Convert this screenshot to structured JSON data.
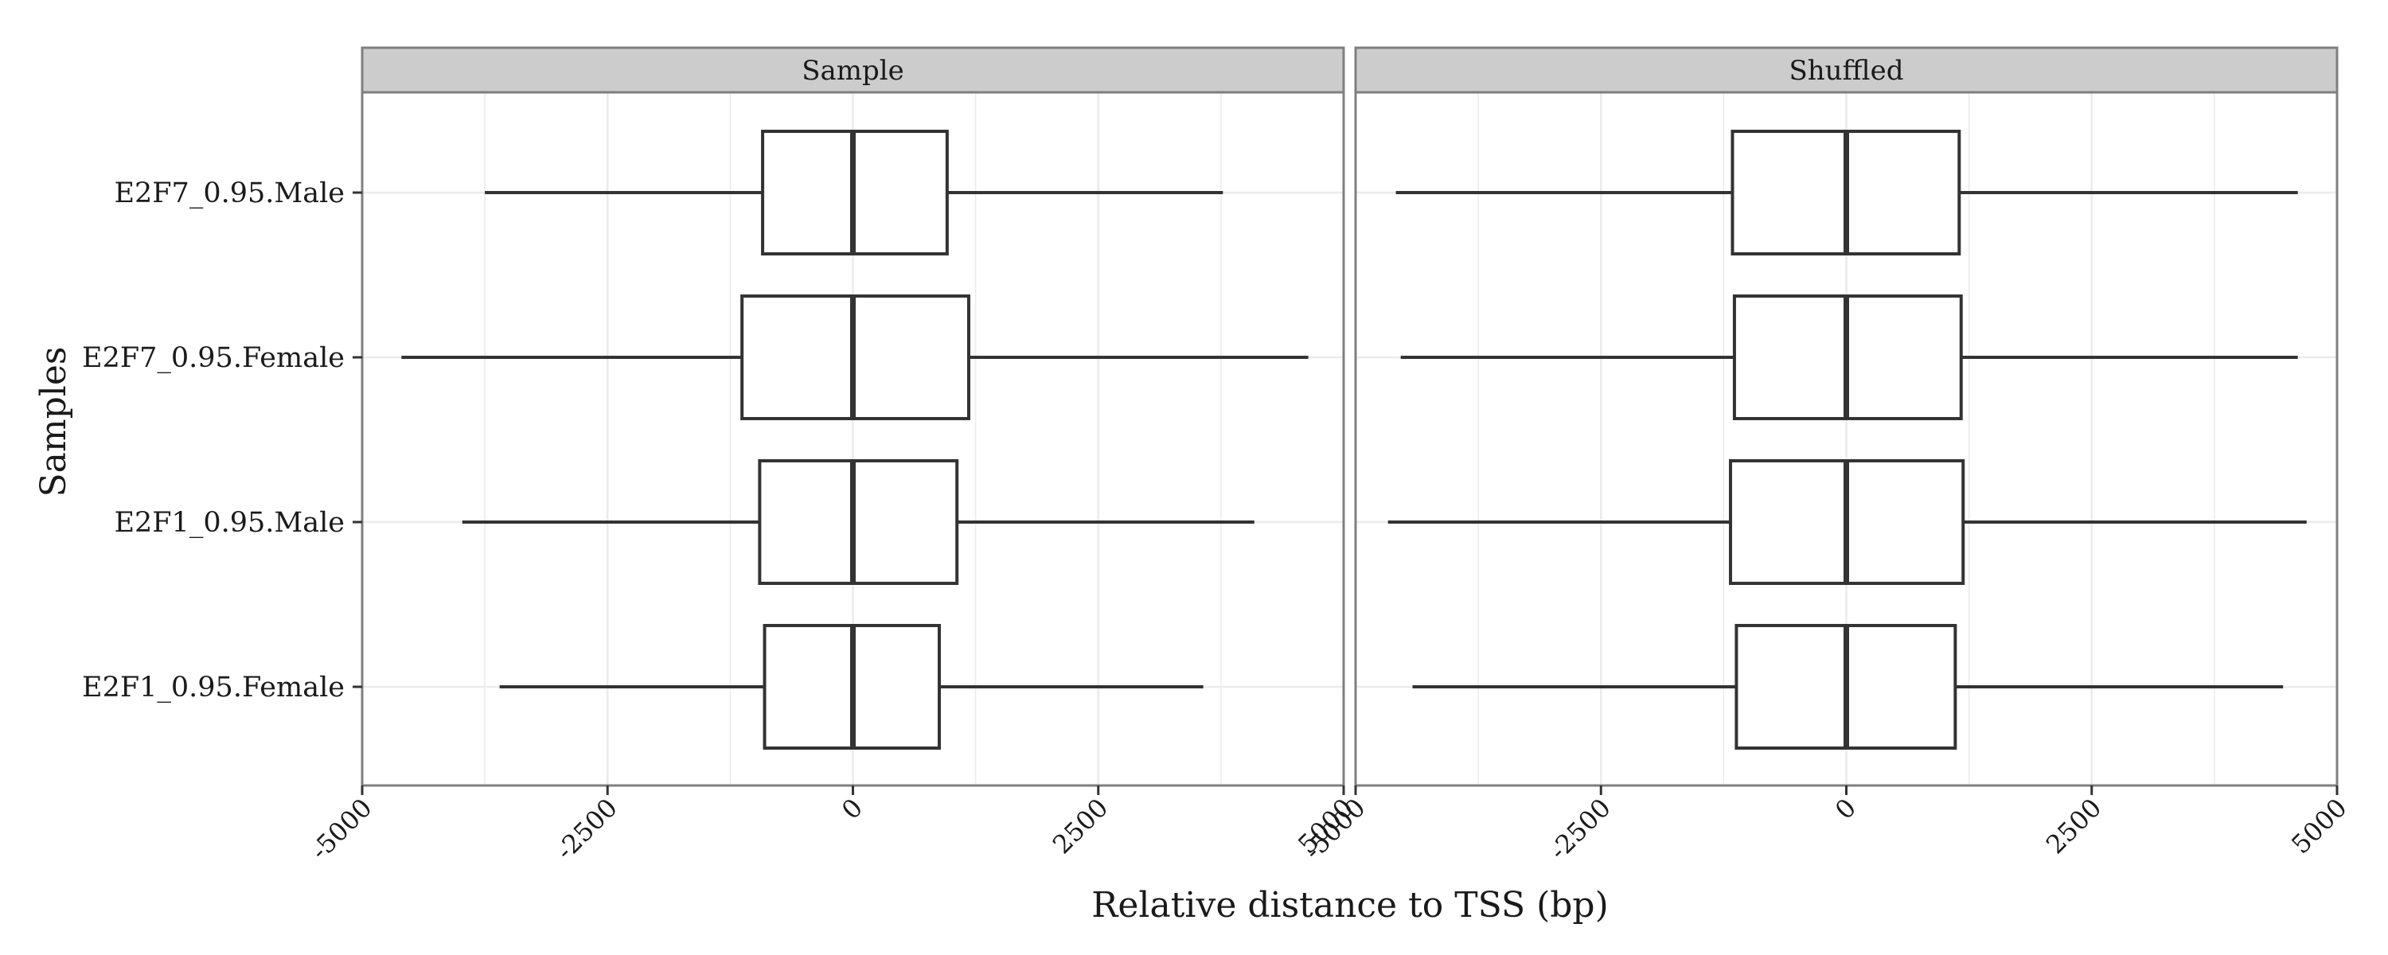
{
  "chart_data": {
    "type": "boxplot",
    "orientation": "horizontal",
    "xlabel": "Relative distance to TSS (bp)",
    "ylabel": "Samples",
    "xlim": [
      -5000,
      5000
    ],
    "x_ticks": [
      -5000,
      -2500,
      0,
      2500,
      5000
    ],
    "x_tick_labels": [
      "-5000",
      "-2500",
      "0",
      "2500",
      "5000"
    ],
    "categories": [
      "E2F7_0.95.Male",
      "E2F7_0.95.Female",
      "E2F1_0.95.Male",
      "E2F1_0.95.Female"
    ],
    "grid": true,
    "colors": {
      "box": "#333333",
      "panel_border": "#7f7f7f",
      "strip_bg": "#cccccc",
      "grid": "#ebebeb"
    },
    "panels": [
      {
        "name": "Sample",
        "boxes": [
          {
            "category": "E2F7_0.95.Male",
            "whisker_low": -3750,
            "q1": -920,
            "median": 0,
            "q3": 960,
            "whisker_high": 3770
          },
          {
            "category": "E2F7_0.95.Female",
            "whisker_low": -4600,
            "q1": -1130,
            "median": 0,
            "q3": 1180,
            "whisker_high": 4640
          },
          {
            "category": "E2F1_0.95.Male",
            "whisker_low": -3980,
            "q1": -950,
            "median": 0,
            "q3": 1060,
            "whisker_high": 4090
          },
          {
            "category": "E2F1_0.95.Female",
            "whisker_low": -3600,
            "q1": -900,
            "median": 0,
            "q3": 880,
            "whisker_high": 3570
          }
        ]
      },
      {
        "name": "Shuffled",
        "boxes": [
          {
            "category": "E2F7_0.95.Male",
            "whisker_low": -4590,
            "q1": -1160,
            "median": 0,
            "q3": 1150,
            "whisker_high": 4600
          },
          {
            "category": "E2F7_0.95.Female",
            "whisker_low": -4540,
            "q1": -1140,
            "median": 0,
            "q3": 1170,
            "whisker_high": 4600
          },
          {
            "category": "E2F1_0.95.Male",
            "whisker_low": -4670,
            "q1": -1180,
            "median": 0,
            "q3": 1190,
            "whisker_high": 4690
          },
          {
            "category": "E2F1_0.95.Female",
            "whisker_low": -4420,
            "q1": -1120,
            "median": 0,
            "q3": 1110,
            "whisker_high": 4450
          }
        ]
      }
    ]
  }
}
